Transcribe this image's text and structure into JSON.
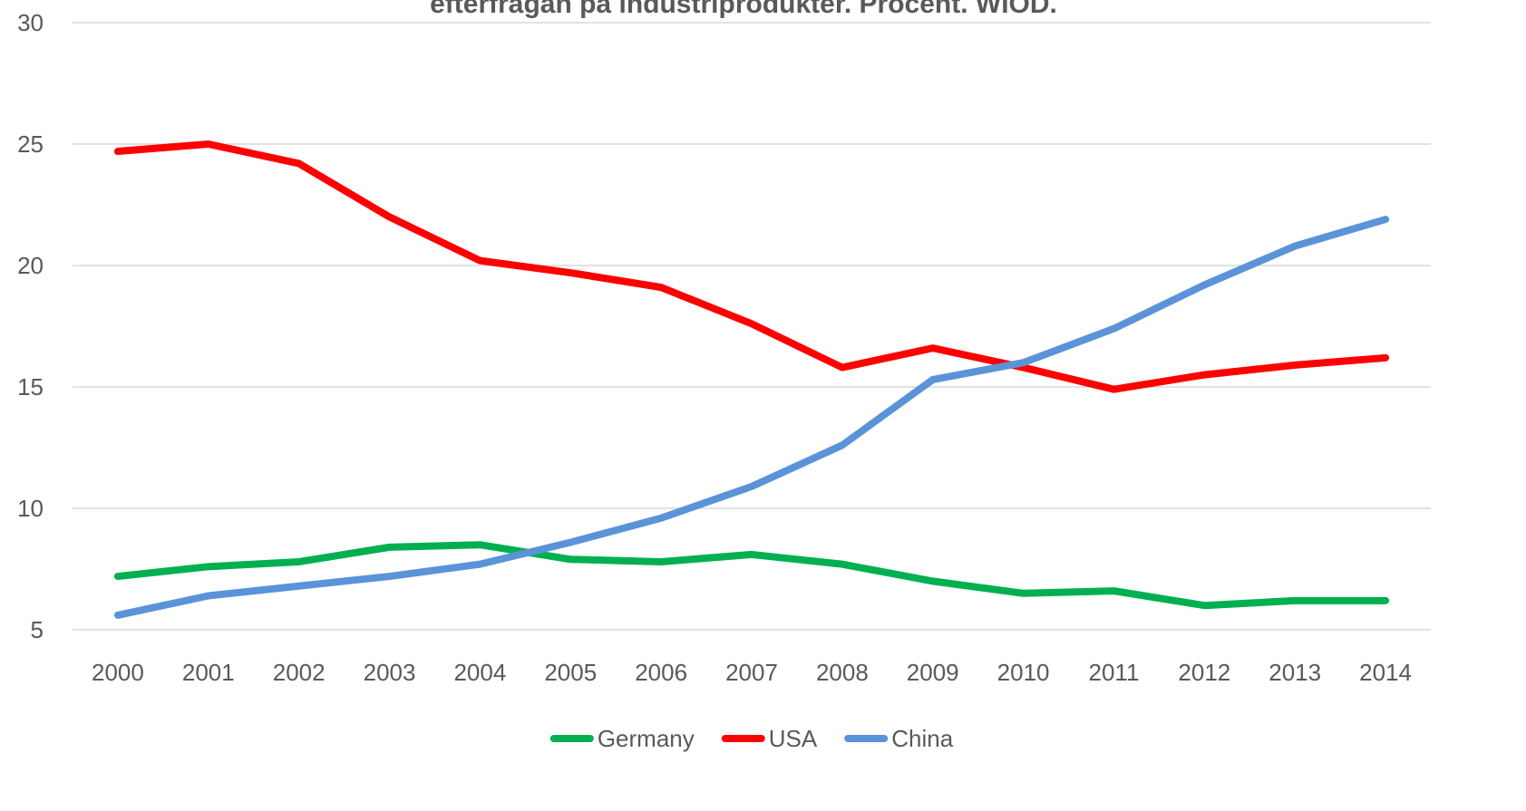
{
  "chart_data": {
    "type": "line",
    "title": "efterfrågan på industriprodukter. Procent. WIOD.",
    "categories": [
      "2000",
      "2001",
      "2002",
      "2003",
      "2004",
      "2005",
      "2006",
      "2007",
      "2008",
      "2009",
      "2010",
      "2011",
      "2012",
      "2013",
      "2014"
    ],
    "series": [
      {
        "name": "Germany",
        "color": "#00b050",
        "values": [
          7.2,
          7.6,
          7.8,
          8.4,
          8.5,
          7.9,
          7.8,
          8.1,
          7.7,
          7.0,
          6.5,
          6.6,
          6.0,
          6.2,
          6.2
        ]
      },
      {
        "name": "USA",
        "color": "#ff0000",
        "values": [
          24.7,
          25.0,
          24.2,
          22.0,
          20.2,
          19.7,
          19.1,
          17.6,
          15.8,
          16.6,
          15.8,
          14.9,
          15.5,
          15.9,
          16.2
        ]
      },
      {
        "name": "China",
        "color": "#5b93d8",
        "values": [
          5.6,
          6.4,
          6.8,
          7.2,
          7.7,
          8.6,
          9.6,
          10.9,
          12.6,
          15.3,
          16.0,
          17.4,
          19.2,
          20.8,
          21.9
        ]
      }
    ],
    "ylim": [
      5,
      30
    ],
    "yticks": [
      5,
      10,
      15,
      20,
      25,
      30
    ],
    "grid": true,
    "legend": "bottom"
  }
}
